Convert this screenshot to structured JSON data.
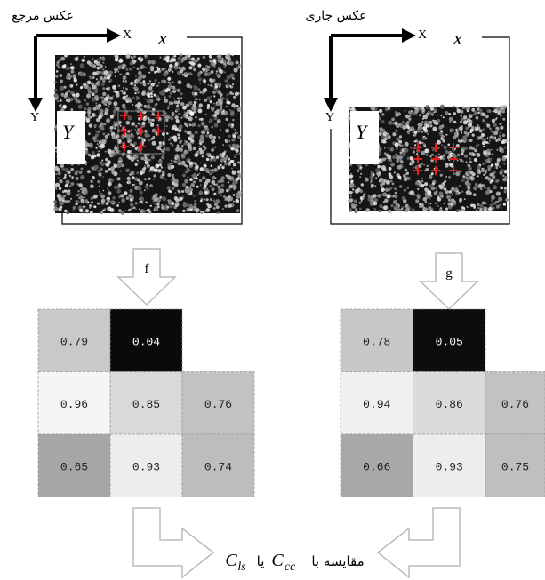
{
  "panels": [
    {
      "title": "عکس مرجع",
      "x_axis": "X",
      "x_label": "x",
      "y_axis": "Y",
      "y_label": "Y",
      "function": "f",
      "grid": [
        [
          0.79,
          0.04
        ],
        [
          0.96,
          0.85,
          0.76
        ],
        [
          0.65,
          0.93,
          0.74
        ]
      ]
    },
    {
      "title": "عکس جاری",
      "x_axis": "X",
      "x_label": "x",
      "y_axis": "Y",
      "y_label": "Y",
      "function": "g",
      "grid": [
        [
          0.78,
          0.05
        ],
        [
          0.94,
          0.86,
          0.76
        ],
        [
          0.66,
          0.93,
          0.75
        ]
      ]
    }
  ],
  "caption": {
    "text": "مقایسه با",
    "c1": "C",
    "c1_sub": "cc",
    "or": "یا",
    "c2": "C",
    "c2_sub": "ls"
  }
}
